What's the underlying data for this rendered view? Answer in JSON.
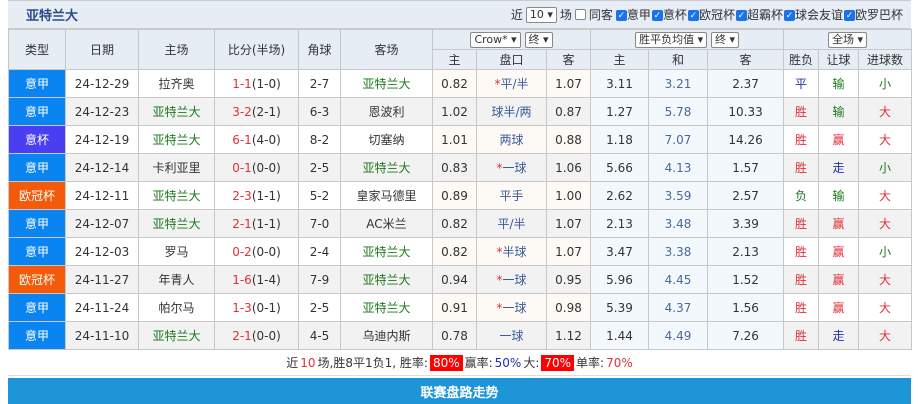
{
  "header": {
    "title": "亚特兰大",
    "recent_label": "近",
    "recent_value": "10",
    "games_label": "场",
    "same_guest_label": "同客",
    "leagues": [
      {
        "label": "意甲",
        "checked": true
      },
      {
        "label": "意杯",
        "checked": true
      },
      {
        "label": "欧冠杯",
        "checked": true
      },
      {
        "label": "超霸杯",
        "checked": true
      },
      {
        "label": "球会友谊",
        "checked": true
      },
      {
        "label": "欧罗巴杯",
        "checked": true
      }
    ]
  },
  "columns": {
    "type": "类型",
    "date": "日期",
    "home": "主场",
    "score": "比分(半场)",
    "corner": "角球",
    "away": "客场",
    "ah_home": "主",
    "ah_line": "盘口",
    "ah_away": "客",
    "eu_home": "主",
    "eu_draw": "和",
    "eu_away": "客",
    "wl": "胜负",
    "hc": "让球",
    "goals": "进球数"
  },
  "selects": {
    "company": "Crow*",
    "ah_stage": "终",
    "eu_type": "胜平负均值",
    "eu_stage": "终",
    "period": "全场"
  },
  "rows": [
    {
      "type": "意甲",
      "tc": "yj",
      "date": "24-12-29",
      "home": "拉齐奥",
      "hg": false,
      "ft": "1-1",
      "ht": "(1-0)",
      "corner": "2-7",
      "away": "亚特兰大",
      "ag": true,
      "ah1": "0.82",
      "star": true,
      "line": "平/半",
      "ah2": "1.07",
      "e1": "3.11",
      "e2": "3.21",
      "e3": "2.37",
      "wl": "平",
      "hc": "输",
      "g": "小"
    },
    {
      "type": "意甲",
      "tc": "yj",
      "date": "24-12-23",
      "home": "亚特兰大",
      "hg": true,
      "ft": "3-2",
      "ht": "(2-1)",
      "corner": "6-3",
      "away": "恩波利",
      "ag": false,
      "ah1": "1.02",
      "star": false,
      "line": "球半/两",
      "ah2": "0.87",
      "e1": "1.27",
      "e2": "5.78",
      "e3": "10.33",
      "wl": "胜",
      "hc": "输",
      "g": "大"
    },
    {
      "type": "意杯",
      "tc": "yb",
      "date": "24-12-19",
      "home": "亚特兰大",
      "hg": true,
      "ft": "6-1",
      "ht": "(4-0)",
      "corner": "8-2",
      "away": "切塞纳",
      "ag": false,
      "ah1": "1.01",
      "star": false,
      "line": "两球",
      "ah2": "0.88",
      "e1": "1.18",
      "e2": "7.07",
      "e3": "14.26",
      "wl": "胜",
      "hc": "赢",
      "g": "大"
    },
    {
      "type": "意甲",
      "tc": "yj",
      "date": "24-12-14",
      "home": "卡利亚里",
      "hg": false,
      "ft": "0-1",
      "ht": "(0-0)",
      "corner": "2-5",
      "away": "亚特兰大",
      "ag": true,
      "ah1": "0.83",
      "star": true,
      "line": "一球",
      "ah2": "1.06",
      "e1": "5.66",
      "e2": "4.13",
      "e3": "1.57",
      "wl": "胜",
      "hc": "走",
      "g": "小"
    },
    {
      "type": "欧冠杯",
      "tc": "og",
      "date": "24-12-11",
      "home": "亚特兰大",
      "hg": true,
      "ft": "2-3",
      "ht": "(1-1)",
      "corner": "5-2",
      "away": "皇家马德里",
      "ag": false,
      "ah1": "0.89",
      "star": false,
      "line": "平手",
      "ah2": "1.00",
      "e1": "2.62",
      "e2": "3.59",
      "e3": "2.57",
      "wl": "负",
      "hc": "输",
      "g": "大"
    },
    {
      "type": "意甲",
      "tc": "yj",
      "date": "24-12-07",
      "home": "亚特兰大",
      "hg": true,
      "ft": "2-1",
      "ht": "(1-1)",
      "corner": "7-0",
      "away": "AC米兰",
      "ag": false,
      "ah1": "0.82",
      "star": false,
      "line": "平/半",
      "ah2": "1.07",
      "e1": "2.13",
      "e2": "3.48",
      "e3": "3.39",
      "wl": "胜",
      "hc": "赢",
      "g": "大"
    },
    {
      "type": "意甲",
      "tc": "yj",
      "date": "24-12-03",
      "home": "罗马",
      "hg": false,
      "ft": "0-2",
      "ht": "(0-0)",
      "corner": "2-4",
      "away": "亚特兰大",
      "ag": true,
      "ah1": "0.82",
      "star": true,
      "line": "半球",
      "ah2": "1.07",
      "e1": "3.47",
      "e2": "3.38",
      "e3": "2.13",
      "wl": "胜",
      "hc": "赢",
      "g": "小"
    },
    {
      "type": "欧冠杯",
      "tc": "og",
      "date": "24-11-27",
      "home": "年青人",
      "hg": false,
      "ft": "1-6",
      "ht": "(1-4)",
      "corner": "7-9",
      "away": "亚特兰大",
      "ag": true,
      "ah1": "0.94",
      "star": true,
      "line": "一球",
      "ah2": "0.95",
      "e1": "5.96",
      "e2": "4.45",
      "e3": "1.52",
      "wl": "胜",
      "hc": "赢",
      "g": "大"
    },
    {
      "type": "意甲",
      "tc": "yj",
      "date": "24-11-24",
      "home": "帕尔马",
      "hg": false,
      "ft": "1-3",
      "ht": "(0-1)",
      "corner": "2-5",
      "away": "亚特兰大",
      "ag": true,
      "ah1": "0.91",
      "star": true,
      "line": "一球",
      "ah2": "0.98",
      "e1": "5.39",
      "e2": "4.37",
      "e3": "1.56",
      "wl": "胜",
      "hc": "赢",
      "g": "大"
    },
    {
      "type": "意甲",
      "tc": "yj",
      "date": "24-11-10",
      "home": "亚特兰大",
      "hg": true,
      "ft": "2-1",
      "ht": "(0-0)",
      "corner": "4-5",
      "away": "乌迪内斯",
      "ag": false,
      "ah1": "0.78",
      "star": false,
      "line": "一球",
      "ah2": "1.12",
      "e1": "1.44",
      "e2": "4.49",
      "e3": "7.26",
      "wl": "胜",
      "hc": "走",
      "g": "大"
    }
  ],
  "summary": {
    "p1": "近",
    "n": "10",
    "p2": "场,胜8平1负1, 胜率:",
    "win_rate": "80%",
    "p3": "赢率:",
    "hc_rate": "50%",
    "p4": "大:",
    "over_rate": "70%",
    "p5": "单率:",
    "odd_rate": "70%"
  },
  "footer_bar": "联赛盘路走势",
  "colors": {
    "yj": "#0a84f0",
    "yb": "#4a3ff0",
    "og": "#f55a0a",
    "win": "#e0303a",
    "draw": "#2030b0",
    "lose": "#1a7a1a",
    "bar": "#1e95d6"
  }
}
